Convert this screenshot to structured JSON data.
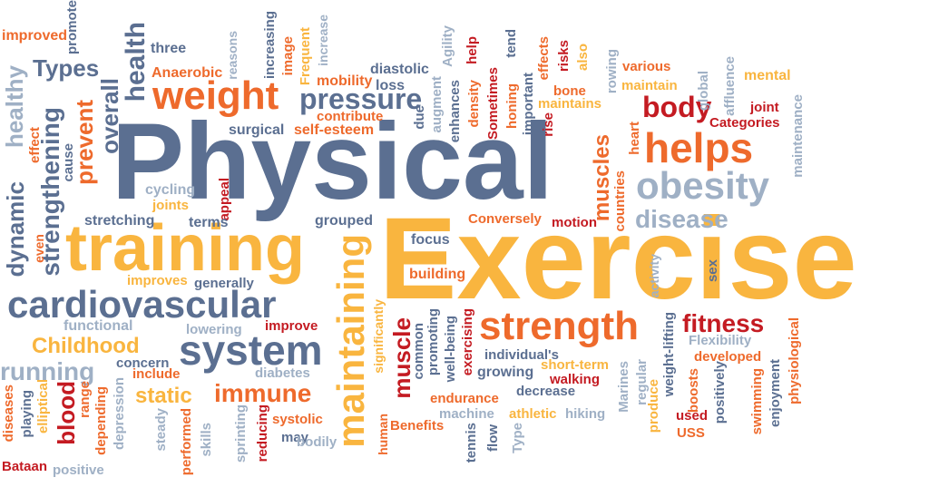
{
  "words": {
    "physical": "Physical",
    "exercise": "Exercise",
    "training": "training",
    "cardiovascular": "cardiovascular",
    "system": "system",
    "strength": "strength",
    "weight": "weight",
    "pressure": "pressure",
    "helps": "helps",
    "obesity": "obesity",
    "body": "body",
    "disease": "disease",
    "fitness": "fitness",
    "maintaining": "maintaining",
    "strengthening": "strengthening",
    "prevent": "prevent",
    "overall": "overall",
    "health": "health",
    "types": "Types",
    "dynamic": "dynamic",
    "healthy": "healthy",
    "running": "running",
    "childhood": "Childhood",
    "immune": "immune",
    "static": "static",
    "muscle": "muscle",
    "muscles": "muscles",
    "blood": "blood",
    "improved": "improved",
    "promote": "promote",
    "three": "three",
    "anaerobic": "Anaerobic",
    "reasons": "reasons",
    "increasing": "increasing",
    "image": "image",
    "frequent": "Frequent",
    "increase": "increase",
    "mobility": "mobility",
    "diastolic": "diastolic",
    "loss": "loss",
    "agility": "Agility",
    "help": "help",
    "tend": "tend",
    "effects": "effects",
    "risks": "risks",
    "also": "also",
    "various": "various",
    "mental": "mental",
    "rowing": "rowing",
    "maintain": "maintain",
    "global": "global",
    "affluence": "affluence",
    "bone": "bone",
    "maintains": "maintains",
    "joint": "joint",
    "categories": "Categories",
    "maintenance": "maintenance",
    "enhances": "enhances",
    "augment": "augment",
    "due": "due",
    "density": "density",
    "sometimes": "Sometimes",
    "honing": "honing",
    "important": "important",
    "rise": "rise",
    "surgical": "surgical",
    "self_esteem": "self-esteem",
    "contribute": "contribute",
    "effect": "effect",
    "cause": "cause",
    "cycling": "cycling",
    "joints": "joints",
    "appeal": "appeal",
    "stretching": "stretching",
    "terms": "terms",
    "grouped": "grouped",
    "conversely": "Conversely",
    "motion": "motion",
    "heart": "heart",
    "countries": "countries",
    "even": "even",
    "elliptical": "elliptical",
    "focus": "focus",
    "building": "building",
    "improves": "improves",
    "generally": "generally",
    "activity": "activity",
    "sex": "sex",
    "functional": "functional",
    "lowering": "lowering",
    "improve": "improve",
    "significantly": "significantly",
    "promoting": "promoting",
    "common": "common",
    "well_being": "well-being",
    "exercising": "exercising",
    "individuals": "individual's",
    "weight_lifting": "weight-lifting",
    "flexibility": "Flexibility",
    "developed": "developed",
    "physiological": "physiological",
    "concern": "concern",
    "include": "include",
    "diabetes": "diabetes",
    "growing": "growing",
    "short_term": "short-term",
    "walking": "walking",
    "regular": "regular",
    "marines": "Marines",
    "boosts": "boosts",
    "positively": "positively",
    "enjoyment": "enjoyment",
    "swimming": "swimming",
    "diseases": "diseases",
    "playing": "playing",
    "range": "range",
    "depression": "depression",
    "steady": "steady",
    "performed": "performed",
    "skills": "skills",
    "sprinting": "sprinting",
    "reducing": "reducing",
    "may": "may",
    "systolic": "systolic",
    "bodily": "bodily",
    "human": "human",
    "benefits": "Benefits",
    "endurance": "endurance",
    "decrease": "decrease",
    "machine": "machine",
    "tennis": "tennis",
    "flow": "flow",
    "type": "Type",
    "athletic": "athletic",
    "hiking": "hiking",
    "produce": "produce",
    "used": "used",
    "uss": "USS",
    "depending": "depending",
    "bataan": "Bataan",
    "positive": "positive"
  },
  "colors": {
    "slate": "#5b6f91",
    "orange": "#ee6a2c",
    "yellow": "#f9b53f",
    "red": "#c41b22",
    "grey": "#9fb0c5",
    "background": "#ffffff"
  }
}
